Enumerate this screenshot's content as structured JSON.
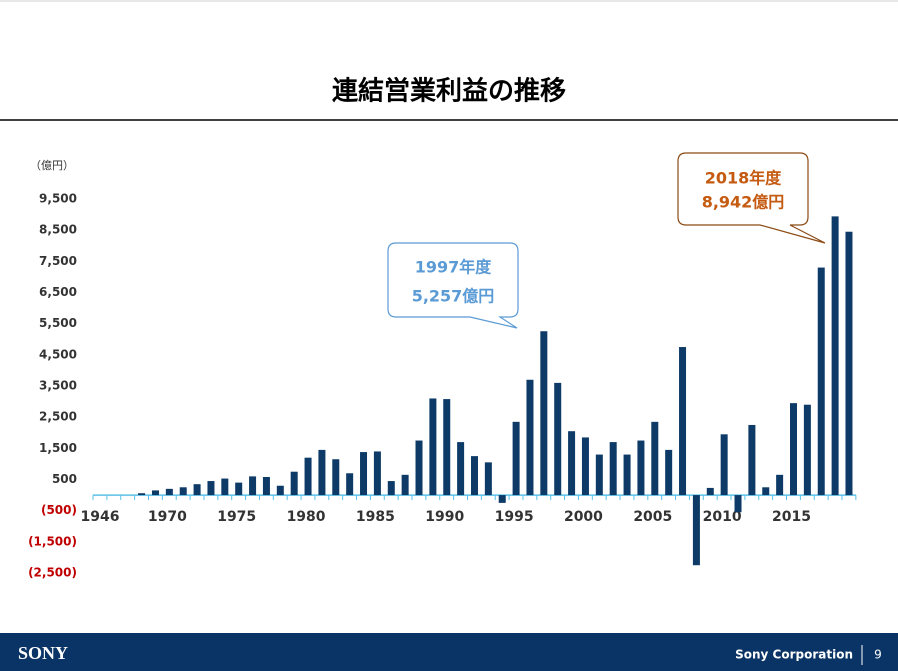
{
  "chart_data": {
    "type": "bar",
    "title": "連結営業利益の推移",
    "unit_label": "（億円）",
    "color": "#0d3a66",
    "negative_tick_color": "#c00000",
    "axis_color": "#5bc0e8",
    "categories": [
      "1946",
      null,
      null,
      null,
      null,
      "1970",
      null,
      null,
      null,
      null,
      "1975",
      null,
      null,
      null,
      null,
      "1980",
      null,
      null,
      null,
      null,
      "1985",
      null,
      null,
      null,
      null,
      "1990",
      null,
      null,
      null,
      null,
      "1995",
      null,
      null,
      null,
      null,
      "2000",
      null,
      null,
      null,
      null,
      "2005",
      null,
      null,
      null,
      null,
      "2010",
      null,
      null,
      null,
      null,
      "2015",
      null,
      null,
      null,
      null
    ],
    "values": [
      null,
      null,
      null,
      60,
      150,
      200,
      250,
      350,
      450,
      530,
      400,
      600,
      580,
      300,
      750,
      1200,
      1450,
      1150,
      700,
      1380,
      1400,
      450,
      650,
      1750,
      3100,
      3080,
      1700,
      1250,
      1050,
      -250,
      2350,
      3700,
      5257,
      3600,
      2050,
      1850,
      1300,
      1700,
      1300,
      1750,
      2350,
      1450,
      4750,
      -2250,
      230,
      1950,
      -550,
      2250,
      250,
      650,
      2950,
      2900,
      7300,
      8942,
      8450
    ],
    "ylim": [
      -2500,
      9500
    ],
    "yticks": [
      {
        "value": 9500,
        "label": "9,500"
      },
      {
        "value": 8500,
        "label": "8,500"
      },
      {
        "value": 7500,
        "label": "7,500"
      },
      {
        "value": 6500,
        "label": "6,500"
      },
      {
        "value": 5500,
        "label": "5,500"
      },
      {
        "value": 4500,
        "label": "4,500"
      },
      {
        "value": 3500,
        "label": "3,500"
      },
      {
        "value": 2500,
        "label": "2,500"
      },
      {
        "value": 1500,
        "label": "1,500"
      },
      500,
      {
        "value": -500,
        "label": "(500)"
      },
      {
        "value": -1500,
        "label": "(1,500)"
      },
      {
        "value": -2500,
        "label": "(2,500)"
      }
    ],
    "annotations": [
      {
        "lines": [
          "1997年度",
          "5,257億円"
        ],
        "color": "#5b9bd5"
      },
      {
        "lines": [
          "2018年度",
          "8,942億円"
        ],
        "color": "#c55a11"
      }
    ]
  },
  "footer": {
    "logo": "SONY",
    "company": "Sony Corporation",
    "page": "9"
  }
}
